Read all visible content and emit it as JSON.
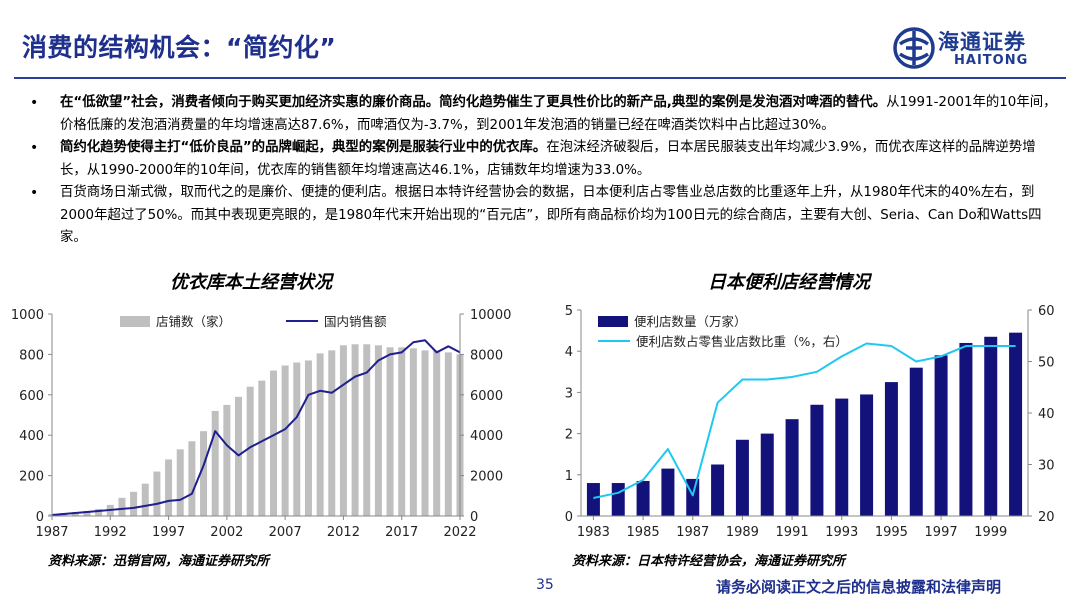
{
  "header": {
    "title": "消费的结构机会：“简约化”",
    "logo_cn": "海通证券",
    "logo_en": "HAITONG"
  },
  "bullets": [
    {
      "bold": "在“低欲望”社会，消费者倾向于购买更加经济实惠的廉价商品。简约化趋势催生了更具性价比的新产品,典型的案例是发泡酒对啤酒的替代。",
      "text": "从1991-2001年的10年间，价格低廉的发泡酒消费量的年均增速高达87.6%，而啤酒仅为-3.7%，到2001年发泡酒的销量已经在啤酒类饮料中占比超过30%。"
    },
    {
      "bold": "简约化趋势使得主打“低价良品”的品牌崛起，典型的案例是服装行业中的优衣库。",
      "text": "在泡沫经济破裂后，日本居民服装支出年均减少3.9%，而优衣库这样的品牌逆势增长，从1990-2000年的10年间，优衣库的销售额年均增速高达46.1%，店铺数年均增速为33.0%。"
    },
    {
      "bold": "",
      "text": "百货商场日渐式微，取而代之的是廉价、便捷的便利店。根据日本特许经营协会的数据，日本便利店占零售业总店数的比重逐年上升，从1980年代末的40%左右，到2000年超过了50%。而其中表现更亮眼的，是1980年代末开始出现的“百元店”，即所有商品标价均为100日元的综合商店，主要有大创、Seria、Can Do和Watts四家。"
    }
  ],
  "footer": {
    "page": "35",
    "disclaimer": "请务必阅读正文之后的信息披露和法律声明"
  },
  "colors": {
    "brand": "#1f2f8c",
    "bar_gray": "#bfbfbf",
    "bar_navy": "#12127a",
    "line_navy": "#1f1f8f",
    "line_cyan": "#1ec8f0"
  },
  "chart_data": [
    {
      "type": "bar",
      "title": "优衣库本土经营状况",
      "source": "资料来源：迅销官网，海通证券研究所",
      "x_ticks": [
        "1987",
        "1992",
        "1997",
        "2002",
        "2007",
        "2012",
        "2017",
        "2022"
      ],
      "xlim": [
        1987,
        2022
      ],
      "y_left": {
        "lim": [
          0,
          1000
        ],
        "ticks": [
          "0",
          "200",
          "400",
          "600",
          "800",
          "1000"
        ]
      },
      "y_right": {
        "lim": [
          0,
          10000
        ],
        "ticks": [
          "0",
          "2000",
          "4000",
          "6000",
          "8000",
          "10000"
        ]
      },
      "series": [
        {
          "name": "店铺数（家）",
          "kind": "bar",
          "axis": "left",
          "x": [
            1987,
            1988,
            1989,
            1990,
            1991,
            1992,
            1993,
            1994,
            1995,
            1996,
            1997,
            1998,
            1999,
            2000,
            2001,
            2002,
            2003,
            2004,
            2005,
            2006,
            2007,
            2008,
            2009,
            2010,
            2011,
            2012,
            2013,
            2014,
            2015,
            2016,
            2017,
            2018,
            2019,
            2020,
            2021,
            2022
          ],
          "values": [
            10,
            15,
            20,
            25,
            35,
            55,
            90,
            120,
            160,
            220,
            280,
            330,
            370,
            420,
            520,
            550,
            590,
            640,
            670,
            720,
            745,
            760,
            770,
            805,
            820,
            845,
            850,
            850,
            845,
            835,
            835,
            830,
            820,
            820,
            810,
            800
          ]
        },
        {
          "name": "国内销售额",
          "kind": "line",
          "axis": "right",
          "x": [
            1987,
            1988,
            1989,
            1990,
            1991,
            1992,
            1993,
            1994,
            1995,
            1996,
            1997,
            1998,
            1999,
            2000,
            2001,
            2002,
            2003,
            2004,
            2005,
            2006,
            2007,
            2008,
            2009,
            2010,
            2011,
            2012,
            2013,
            2014,
            2015,
            2016,
            2017,
            2018,
            2019,
            2020,
            2021,
            2022
          ],
          "values": [
            50,
            100,
            150,
            200,
            250,
            300,
            350,
            400,
            500,
            600,
            750,
            800,
            1100,
            2500,
            4200,
            3500,
            3000,
            3400,
            3700,
            4000,
            4300,
            4900,
            6000,
            6200,
            6100,
            6500,
            6900,
            7100,
            7700,
            8000,
            8100,
            8600,
            8700,
            8100,
            8400,
            8100
          ]
        }
      ]
    },
    {
      "type": "bar",
      "title": "日本便利店经营情况",
      "source": "资料来源：日本特许经营协会，海通证券研究所",
      "x_ticks": [
        "1983",
        "1985",
        "1987",
        "1989",
        "1991",
        "1993",
        "1995",
        "1997",
        "1999"
      ],
      "xlim": [
        1982.5,
        2000.5
      ],
      "y_left": {
        "lim": [
          0,
          5
        ],
        "ticks": [
          "0",
          "1",
          "2",
          "3",
          "4",
          "5"
        ]
      },
      "y_right": {
        "lim": [
          20,
          60
        ],
        "ticks": [
          "20",
          "30",
          "40",
          "50",
          "60"
        ]
      },
      "series": [
        {
          "name": "便利店数量（万家）",
          "kind": "bar",
          "axis": "left",
          "x": [
            1983,
            1984,
            1985,
            1986,
            1987,
            1988,
            1989,
            1990,
            1991,
            1992,
            1993,
            1994,
            1995,
            1996,
            1997,
            1998,
            1999,
            2000
          ],
          "values": [
            0.8,
            0.8,
            0.85,
            1.15,
            0.9,
            1.25,
            1.85,
            2.0,
            2.35,
            2.7,
            2.85,
            2.95,
            3.25,
            3.6,
            3.9,
            4.2,
            4.35,
            4.45
          ]
        },
        {
          "name": "便利店数占零售业店数比重（%，右）",
          "kind": "line",
          "axis": "right",
          "x": [
            1983,
            1984,
            1985,
            1986,
            1987,
            1988,
            1989,
            1990,
            1991,
            1992,
            1993,
            1994,
            1995,
            1996,
            1997,
            1998,
            1999,
            2000
          ],
          "values": [
            23.5,
            24.5,
            27,
            33,
            24,
            42,
            46.5,
            46.5,
            47,
            48,
            51,
            53.5,
            53,
            50,
            51,
            53,
            53,
            53
          ]
        }
      ]
    }
  ]
}
